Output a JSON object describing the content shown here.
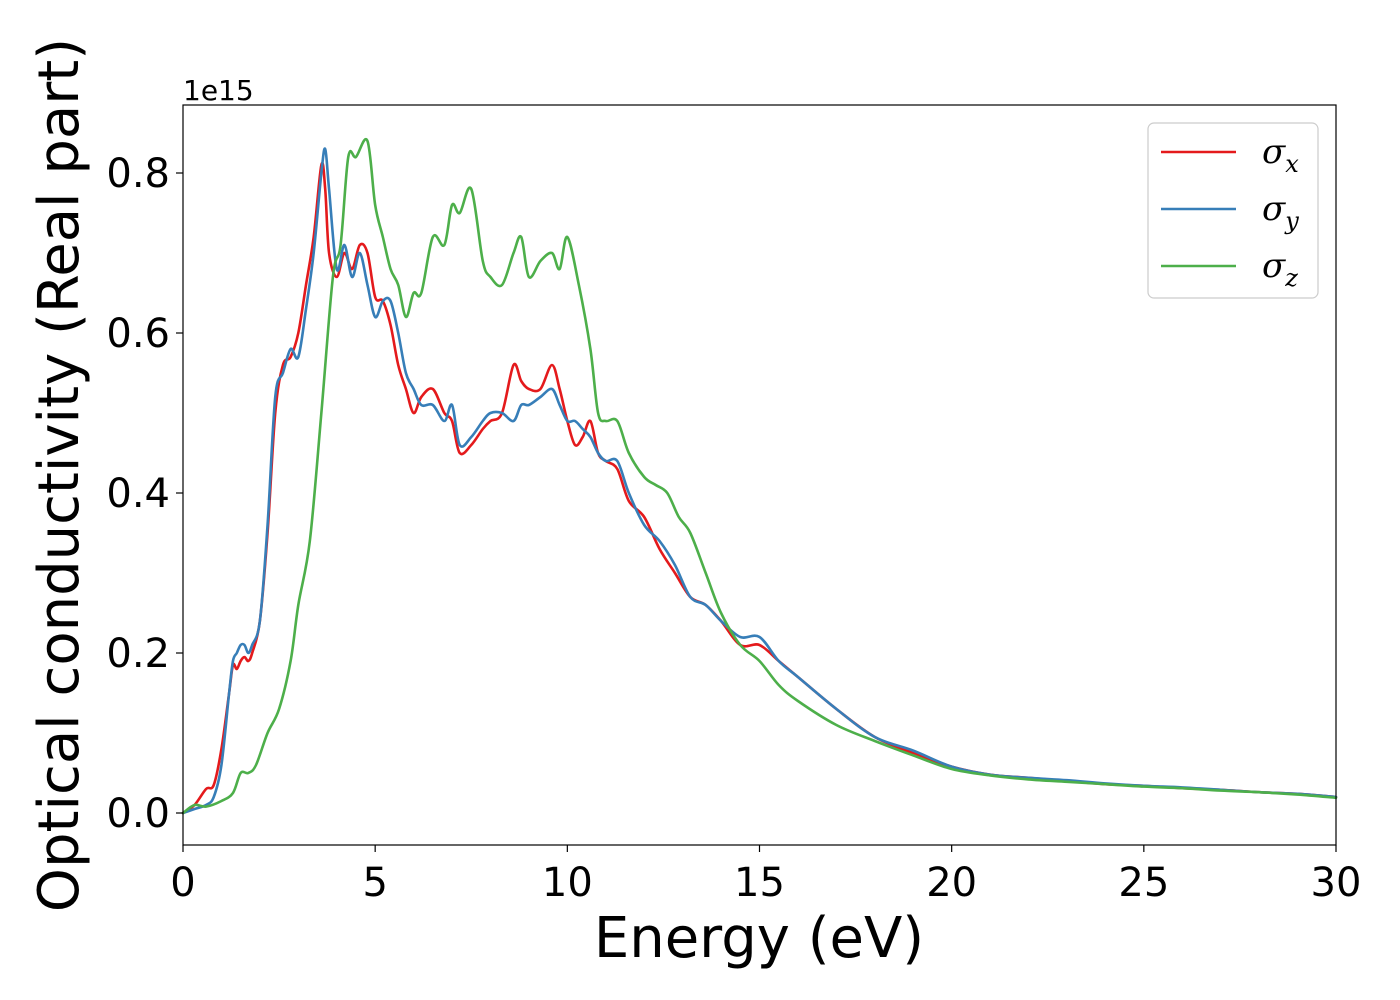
{
  "chart_data": {
    "type": "line",
    "title": "",
    "xlabel": "Energy (eV)",
    "ylabel": "Optical conductivity (Real part)",
    "y_offset_label": "1e15",
    "xlim": [
      0,
      30
    ],
    "ylim": [
      -0.04,
      0.885
    ],
    "x_ticks": [
      0,
      5,
      10,
      15,
      20,
      25,
      30
    ],
    "x_tick_labels": [
      "0",
      "5",
      "10",
      "15",
      "20",
      "25",
      "30"
    ],
    "y_ticks": [
      0.0,
      0.2,
      0.4,
      0.6,
      0.8
    ],
    "y_tick_labels": [
      "0.0",
      "0.2",
      "0.4",
      "0.6",
      "0.8"
    ],
    "grid": false,
    "legend_position": "top-right",
    "series": [
      {
        "name": "σx",
        "legend_main": "σ",
        "legend_sub": "x",
        "color": "#e41a1c",
        "x": [
          0,
          0.3,
          0.6,
          0.8,
          1.0,
          1.2,
          1.3,
          1.4,
          1.5,
          1.6,
          1.7,
          1.8,
          2.0,
          2.2,
          2.4,
          2.6,
          2.8,
          3.0,
          3.2,
          3.4,
          3.6,
          3.7,
          3.8,
          4.0,
          4.2,
          4.4,
          4.6,
          4.8,
          5.0,
          5.2,
          5.4,
          5.6,
          5.8,
          6.0,
          6.2,
          6.5,
          6.8,
          7.0,
          7.2,
          7.5,
          7.8,
          8.0,
          8.3,
          8.6,
          8.8,
          9.0,
          9.3,
          9.6,
          9.8,
          10.0,
          10.2,
          10.4,
          10.6,
          10.8,
          11.0,
          11.3,
          11.6,
          12.0,
          12.4,
          12.8,
          13.2,
          13.6,
          14.0,
          14.5,
          15.0,
          15.5,
          16.0,
          17.0,
          18.0,
          19.0,
          20.0,
          21.0,
          22.0,
          23.0,
          24.0,
          25.0,
          26.0,
          27.0,
          28.0,
          29.0,
          30.0
        ],
        "values": [
          0.0,
          0.01,
          0.03,
          0.035,
          0.08,
          0.15,
          0.185,
          0.18,
          0.19,
          0.195,
          0.19,
          0.2,
          0.24,
          0.35,
          0.5,
          0.56,
          0.57,
          0.6,
          0.66,
          0.72,
          0.81,
          0.78,
          0.7,
          0.67,
          0.7,
          0.68,
          0.71,
          0.7,
          0.645,
          0.64,
          0.61,
          0.56,
          0.53,
          0.5,
          0.52,
          0.53,
          0.5,
          0.49,
          0.45,
          0.46,
          0.48,
          0.49,
          0.5,
          0.56,
          0.54,
          0.53,
          0.53,
          0.56,
          0.53,
          0.49,
          0.46,
          0.47,
          0.49,
          0.45,
          0.44,
          0.43,
          0.39,
          0.37,
          0.33,
          0.3,
          0.27,
          0.26,
          0.24,
          0.21,
          0.21,
          0.19,
          0.17,
          0.13,
          0.095,
          0.075,
          0.058,
          0.048,
          0.044,
          0.04,
          0.036,
          0.034,
          0.031,
          0.029,
          0.026,
          0.024,
          0.02
        ]
      },
      {
        "name": "σy",
        "legend_main": "σ",
        "legend_sub": "y",
        "color": "#377eb8",
        "x": [
          0,
          0.3,
          0.6,
          0.8,
          1.0,
          1.2,
          1.3,
          1.4,
          1.5,
          1.6,
          1.7,
          1.8,
          2.0,
          2.2,
          2.4,
          2.6,
          2.8,
          3.0,
          3.2,
          3.4,
          3.6,
          3.7,
          3.8,
          4.0,
          4.2,
          4.4,
          4.6,
          4.8,
          5.0,
          5.2,
          5.4,
          5.6,
          5.8,
          6.0,
          6.2,
          6.5,
          6.8,
          7.0,
          7.2,
          7.5,
          7.8,
          8.0,
          8.3,
          8.6,
          8.8,
          9.0,
          9.3,
          9.6,
          9.8,
          10.0,
          10.2,
          10.4,
          10.6,
          10.8,
          11.0,
          11.3,
          11.6,
          12.0,
          12.4,
          12.8,
          13.2,
          13.6,
          14.0,
          14.5,
          15.0,
          15.5,
          16.0,
          17.0,
          18.0,
          19.0,
          20.0,
          21.0,
          22.0,
          23.0,
          24.0,
          25.0,
          26.0,
          27.0,
          28.0,
          29.0,
          30.0
        ],
        "values": [
          0.0,
          0.005,
          0.01,
          0.02,
          0.06,
          0.15,
          0.19,
          0.2,
          0.21,
          0.21,
          0.2,
          0.21,
          0.24,
          0.36,
          0.52,
          0.55,
          0.58,
          0.57,
          0.63,
          0.7,
          0.8,
          0.83,
          0.78,
          0.68,
          0.71,
          0.67,
          0.7,
          0.66,
          0.62,
          0.64,
          0.64,
          0.6,
          0.55,
          0.53,
          0.51,
          0.51,
          0.49,
          0.51,
          0.46,
          0.47,
          0.49,
          0.5,
          0.5,
          0.49,
          0.51,
          0.51,
          0.52,
          0.53,
          0.51,
          0.49,
          0.49,
          0.48,
          0.47,
          0.45,
          0.44,
          0.44,
          0.4,
          0.36,
          0.34,
          0.31,
          0.27,
          0.26,
          0.24,
          0.22,
          0.22,
          0.19,
          0.17,
          0.13,
          0.095,
          0.078,
          0.058,
          0.048,
          0.044,
          0.041,
          0.037,
          0.034,
          0.032,
          0.029,
          0.026,
          0.024,
          0.02
        ]
      },
      {
        "name": "σz",
        "legend_main": "σ",
        "legend_sub": "z",
        "color": "#4daf4a",
        "x": [
          0,
          0.3,
          0.6,
          1.0,
          1.3,
          1.5,
          1.7,
          1.9,
          2.2,
          2.5,
          2.8,
          3.0,
          3.3,
          3.6,
          3.9,
          4.1,
          4.3,
          4.5,
          4.8,
          5.0,
          5.2,
          5.4,
          5.6,
          5.8,
          6.0,
          6.2,
          6.5,
          6.8,
          7.0,
          7.2,
          7.5,
          7.8,
          8.0,
          8.3,
          8.6,
          8.8,
          9.0,
          9.3,
          9.6,
          9.8,
          10.0,
          10.3,
          10.6,
          10.8,
          11.0,
          11.3,
          11.6,
          12.0,
          12.3,
          12.6,
          12.9,
          13.2,
          13.6,
          14.0,
          14.5,
          15.0,
          15.5,
          16.0,
          17.0,
          18.0,
          19.0,
          20.0,
          21.0,
          22.0,
          23.0,
          24.0,
          25.0,
          26.0,
          27.0,
          28.0,
          29.0,
          30.0
        ],
        "values": [
          0.0,
          0.01,
          0.008,
          0.015,
          0.025,
          0.05,
          0.05,
          0.06,
          0.1,
          0.13,
          0.19,
          0.26,
          0.34,
          0.5,
          0.67,
          0.71,
          0.82,
          0.82,
          0.84,
          0.76,
          0.72,
          0.68,
          0.66,
          0.62,
          0.65,
          0.65,
          0.72,
          0.71,
          0.76,
          0.75,
          0.78,
          0.69,
          0.67,
          0.66,
          0.7,
          0.72,
          0.67,
          0.69,
          0.7,
          0.68,
          0.72,
          0.66,
          0.58,
          0.5,
          0.49,
          0.49,
          0.45,
          0.42,
          0.41,
          0.4,
          0.37,
          0.35,
          0.3,
          0.25,
          0.21,
          0.19,
          0.16,
          0.14,
          0.11,
          0.09,
          0.072,
          0.055,
          0.047,
          0.042,
          0.039,
          0.036,
          0.033,
          0.031,
          0.028,
          0.026,
          0.023,
          0.019
        ]
      }
    ]
  }
}
